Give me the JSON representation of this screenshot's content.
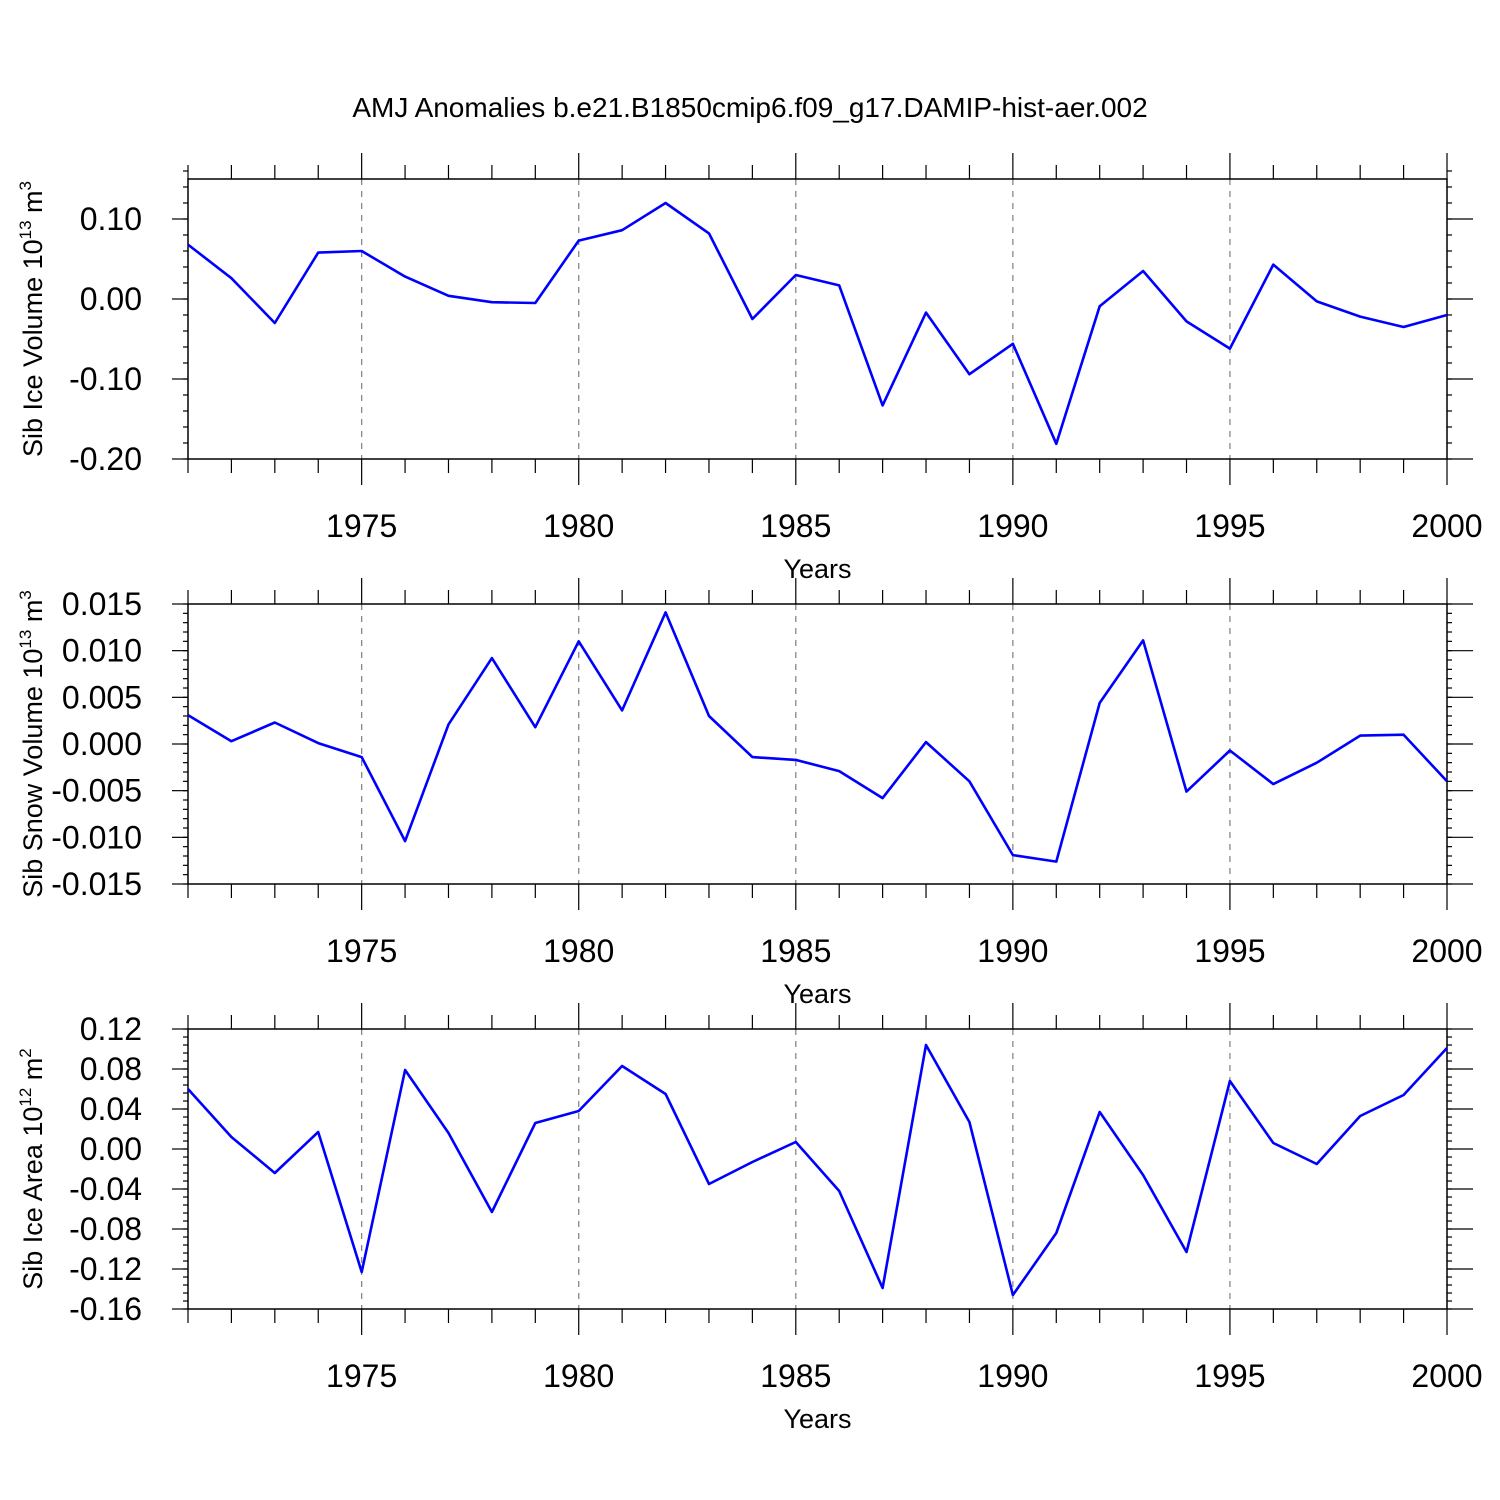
{
  "figure": {
    "title": "AMJ Anomalies b.e21.B1850cmip6.f09_g17.DAMIP-hist-aer.002",
    "line_color": "#0000ff",
    "grid_color": "#888888"
  },
  "chart_data": [
    {
      "type": "line",
      "title": "AMJ Anomalies b.e21.B1850cmip6.f09_g17.DAMIP-hist-aer.002",
      "xlabel": "Years",
      "ylabel": "Sib Ice Volume 10",
      "ylabel_exp": "13",
      "ylabel_unit": "m",
      "ylabel_unit_exp": "3",
      "xlim": [
        1971,
        2000
      ],
      "ylim": [
        -0.2,
        0.15
      ],
      "xticks": [
        1975,
        1980,
        1985,
        1990,
        1995,
        2000
      ],
      "xtick_labels": [
        "1975",
        "1980",
        "1985",
        "1990",
        "1995",
        "2000"
      ],
      "yticks": [
        -0.2,
        -0.1,
        0.0,
        0.1
      ],
      "ytick_labels": [
        "-0.20",
        "-0.10",
        "0.00",
        "0.10"
      ],
      "yminor_step": 0.02,
      "x": [
        1971,
        1972,
        1973,
        1974,
        1975,
        1976,
        1977,
        1978,
        1979,
        1980,
        1981,
        1982,
        1983,
        1984,
        1985,
        1986,
        1987,
        1988,
        1989,
        1990,
        1991,
        1992,
        1993,
        1994,
        1995,
        1996,
        1997,
        1998,
        1999,
        2000
      ],
      "series": [
        {
          "name": "Sib Ice Volume",
          "values": [
            0.068,
            0.026,
            -0.03,
            0.058,
            0.06,
            0.028,
            0.004,
            -0.004,
            -0.005,
            0.073,
            0.086,
            0.12,
            0.082,
            -0.025,
            0.03,
            0.017,
            -0.133,
            -0.017,
            -0.094,
            -0.056,
            -0.181,
            -0.009,
            0.035,
            -0.028,
            -0.062,
            0.043,
            -0.003,
            -0.022,
            -0.035,
            -0.02
          ]
        }
      ]
    },
    {
      "type": "line",
      "xlabel": "Years",
      "ylabel": "Sib Snow Volume 10",
      "ylabel_exp": "13",
      "ylabel_unit": "m",
      "ylabel_unit_exp": "3",
      "xlim": [
        1971,
        2000
      ],
      "ylim": [
        -0.015,
        0.015
      ],
      "xticks": [
        1975,
        1980,
        1985,
        1990,
        1995,
        2000
      ],
      "xtick_labels": [
        "1975",
        "1980",
        "1985",
        "1990",
        "1995",
        "2000"
      ],
      "yticks": [
        -0.015,
        -0.01,
        -0.005,
        0.0,
        0.005,
        0.01,
        0.015
      ],
      "ytick_labels": [
        "-0.015",
        "-0.010",
        "-0.005",
        "0.000",
        "0.005",
        "0.010",
        "0.015"
      ],
      "yminor_step": 0.001,
      "x": [
        1971,
        1972,
        1973,
        1974,
        1975,
        1976,
        1977,
        1978,
        1979,
        1980,
        1981,
        1982,
        1983,
        1984,
        1985,
        1986,
        1987,
        1988,
        1989,
        1990,
        1991,
        1992,
        1993,
        1994,
        1995,
        1996,
        1997,
        1998,
        1999,
        2000
      ],
      "series": [
        {
          "name": "Sib Snow Volume",
          "values": [
            0.0031,
            0.0003,
            0.0023,
            0.0001,
            -0.0014,
            -0.0104,
            0.0021,
            0.0092,
            0.0018,
            0.011,
            0.0036,
            0.0141,
            0.003,
            -0.0014,
            -0.0017,
            -0.0029,
            -0.0058,
            0.0002,
            -0.004,
            -0.0119,
            -0.0126,
            0.0044,
            0.0111,
            -0.0051,
            -0.0007,
            -0.0043,
            -0.002,
            0.0009,
            0.001,
            -0.004
          ]
        }
      ]
    },
    {
      "type": "line",
      "xlabel": "Years",
      "ylabel": "Sib Ice Area 10",
      "ylabel_exp": "12",
      "ylabel_unit": "m",
      "ylabel_unit_exp": "2",
      "xlim": [
        1971,
        2000
      ],
      "ylim": [
        -0.16,
        0.12
      ],
      "xticks": [
        1975,
        1980,
        1985,
        1990,
        1995,
        2000
      ],
      "xtick_labels": [
        "1975",
        "1980",
        "1985",
        "1990",
        "1995",
        "2000"
      ],
      "yticks": [
        -0.16,
        -0.12,
        -0.08,
        -0.04,
        0.0,
        0.04,
        0.08,
        0.12
      ],
      "ytick_labels": [
        "-0.16",
        "-0.12",
        "-0.08",
        "-0.04",
        "0.00",
        "0.04",
        "0.08",
        "0.12"
      ],
      "yminor_step": 0.008,
      "x": [
        1971,
        1972,
        1973,
        1974,
        1975,
        1976,
        1977,
        1978,
        1979,
        1980,
        1981,
        1982,
        1983,
        1984,
        1985,
        1986,
        1987,
        1988,
        1989,
        1990,
        1991,
        1992,
        1993,
        1994,
        1995,
        1996,
        1997,
        1998,
        1999,
        2000
      ],
      "series": [
        {
          "name": "Sib Ice Area",
          "values": [
            0.06,
            0.012,
            -0.024,
            0.017,
            -0.123,
            0.079,
            0.016,
            -0.063,
            0.026,
            0.038,
            0.083,
            0.055,
            -0.035,
            -0.013,
            0.007,
            -0.042,
            -0.139,
            0.104,
            0.027,
            -0.146,
            -0.084,
            0.037,
            -0.026,
            -0.103,
            0.068,
            0.006,
            -0.015,
            0.033,
            0.054,
            0.101
          ]
        }
      ]
    }
  ]
}
